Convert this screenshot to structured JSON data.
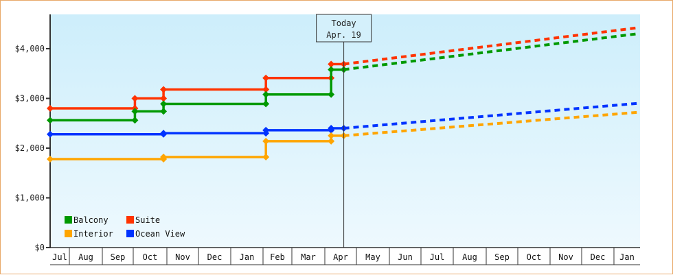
{
  "chart_data": {
    "type": "line",
    "title": "",
    "xlabel": "",
    "ylabel": "",
    "ylim": [
      0,
      4700
    ],
    "y_ticks": [
      {
        "value": 0,
        "label": "$0"
      },
      {
        "value": 1000,
        "label": "$1,000"
      },
      {
        "value": 2000,
        "label": "$2,000"
      },
      {
        "value": 3000,
        "label": "$3,000"
      },
      {
        "value": 4000,
        "label": "$4,000"
      }
    ],
    "x_months": [
      "Jul",
      "Aug",
      "Sep",
      "Oct",
      "Nov",
      "Dec",
      "Jan",
      "Feb",
      "Mar",
      "Apr",
      "May",
      "Jun",
      "Jul",
      "Aug",
      "Sep",
      "Oct",
      "Nov",
      "Dec",
      "Jan"
    ],
    "today_marker": {
      "line1": "Today",
      "line2": "Apr. 19",
      "x_index": 9.6
    },
    "legend": [
      {
        "label": "Balcony",
        "color": "#009900"
      },
      {
        "label": "Suite",
        "color": "#ff3300"
      },
      {
        "label": "Interior",
        "color": "#ffa500"
      },
      {
        "label": "Ocean View",
        "color": "#0033ff"
      }
    ],
    "grid": false,
    "background_gradient": [
      "#cdeefb",
      "#eef9fe"
    ],
    "series": [
      {
        "name": "Suite",
        "color": "#ff3300",
        "history": [
          [
            0,
            2800
          ],
          [
            3.05,
            2800
          ],
          [
            3.05,
            3000
          ],
          [
            3.9,
            3000
          ],
          [
            3.9,
            3180
          ],
          [
            7.1,
            3180
          ],
          [
            7.1,
            3410
          ],
          [
            9.2,
            3410
          ],
          [
            9.2,
            3690
          ],
          [
            9.6,
            3690
          ]
        ],
        "forecast": [
          [
            9.6,
            3690
          ],
          [
            18.9,
            4420
          ]
        ]
      },
      {
        "name": "Balcony",
        "color": "#009900",
        "history": [
          [
            0,
            2560
          ],
          [
            3.05,
            2560
          ],
          [
            3.05,
            2740
          ],
          [
            3.9,
            2740
          ],
          [
            3.9,
            2890
          ],
          [
            7.1,
            2890
          ],
          [
            7.1,
            3080
          ],
          [
            9.2,
            3080
          ],
          [
            9.2,
            3580
          ],
          [
            9.6,
            3580
          ]
        ],
        "forecast": [
          [
            9.6,
            3580
          ],
          [
            18.9,
            4300
          ]
        ]
      },
      {
        "name": "Ocean View",
        "color": "#0033ff",
        "history": [
          [
            0,
            2280
          ],
          [
            3.9,
            2280
          ],
          [
            3.9,
            2300
          ],
          [
            7.1,
            2300
          ],
          [
            7.1,
            2360
          ],
          [
            9.2,
            2360
          ],
          [
            9.2,
            2400
          ],
          [
            9.6,
            2400
          ]
        ],
        "forecast": [
          [
            9.6,
            2400
          ],
          [
            18.9,
            2900
          ]
        ]
      },
      {
        "name": "Interior",
        "color": "#ffa500",
        "history": [
          [
            0,
            1780
          ],
          [
            3.9,
            1780
          ],
          [
            3.9,
            1820
          ],
          [
            7.1,
            1820
          ],
          [
            7.1,
            2140
          ],
          [
            9.2,
            2140
          ],
          [
            9.2,
            2250
          ],
          [
            9.6,
            2250
          ]
        ],
        "forecast": [
          [
            9.6,
            2250
          ],
          [
            18.9,
            2720
          ]
        ]
      }
    ]
  }
}
